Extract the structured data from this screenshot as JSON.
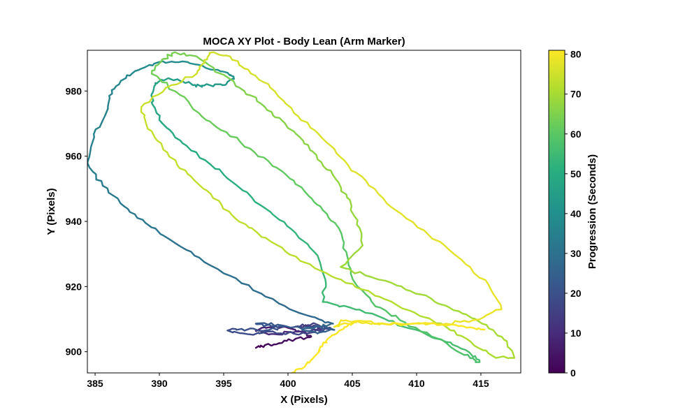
{
  "chart_data": {
    "type": "line",
    "title": "MOCA XY Plot - Body Lean (Arm Marker)",
    "xlabel": "X (Pixels)",
    "ylabel": "Y (Pixels)",
    "xlim": [
      384.4,
      418.1
    ],
    "ylim": [
      893.5,
      992.5
    ],
    "x_ticks": [
      385,
      390,
      395,
      400,
      405,
      410,
      415
    ],
    "y_ticks": [
      900,
      920,
      940,
      960,
      980
    ],
    "grid": false,
    "colorbar": {
      "label": "Progression (Seconds)",
      "range": [
        0,
        81
      ],
      "ticks": [
        0,
        10,
        20,
        30,
        40,
        50,
        60,
        70,
        80
      ],
      "colormap": "viridis"
    },
    "series": [
      {
        "x": [
          397.5,
          398.2,
          399.3,
          400.6,
          401.8,
          401.0,
          399.6,
          398.3,
          397.5,
          398.6,
          400.4,
          402.2,
          403.3,
          402.0,
          400.6,
          401.9,
          403.2
        ],
        "y": [
          901.2,
          902.0,
          902.6,
          904.0,
          904.6,
          906.2,
          907.6,
          907.3,
          906.4,
          905.4,
          905.9,
          906.7,
          907.3,
          908.0,
          907.7,
          908.6,
          907.3
        ],
        "t": [
          0,
          1,
          2,
          3,
          4,
          5,
          6,
          7,
          8,
          9,
          10,
          11,
          12,
          13,
          14,
          15,
          16
        ]
      },
      {
        "x": [
          403.3,
          402.0,
          400.4,
          398.6,
          397.1,
          395.3,
          396.4,
          398.1,
          399.6,
          398.3,
          397.5,
          399.2,
          400.9,
          402.6,
          403.6,
          402.3,
          401.1,
          402.7,
          403.5
        ],
        "y": [
          907.3,
          906.0,
          905.6,
          906.2,
          905.3,
          906.5,
          907.0,
          906.4,
          907.6,
          908.1,
          908.6,
          908.3,
          907.4,
          907.5,
          906.7,
          905.6,
          906.8,
          907.9,
          908.6
        ],
        "t": [
          16,
          16.6,
          17.2,
          17.8,
          18.4,
          19,
          19.6,
          20.2,
          20.8,
          21.4,
          22,
          22.6,
          23.2,
          23.8,
          24.4,
          25,
          25.6,
          26.2,
          26.8
        ]
      },
      {
        "x": [
          403.5,
          401.8,
          399.3,
          396.4,
          393.5,
          391.2,
          388.9,
          387.2,
          385.6,
          384.4,
          384.9,
          386.0,
          386.3,
          387.4,
          388.5,
          389.9,
          391.8,
          393.6,
          395.3,
          395.8,
          394.9,
          393.5,
          392.6,
          391.4,
          390.1,
          389.6,
          389.4,
          390.2,
          391.8,
          393.9,
          396.0,
          398.2,
          400.3,
          402.1,
          402.9,
          402.7
        ],
        "y": [
          908.6,
          910.8,
          914.8,
          921.0,
          927.5,
          933.4,
          939.6,
          944.8,
          950.9,
          958.0,
          966.8,
          974.6,
          980.3,
          984.0,
          986.7,
          988.8,
          989.1,
          987.1,
          985.6,
          983.7,
          981.8,
          981.7,
          981.8,
          983.6,
          983.5,
          981.5,
          976.5,
          970.2,
          964.0,
          957.7,
          951.1,
          944.1,
          937.5,
          930.4,
          922.2,
          915.3
        ],
        "t": [
          26.8,
          27.6,
          28.4,
          29.2,
          30,
          30.8,
          31.6,
          32.4,
          33.2,
          34,
          34.8,
          35.6,
          36.4,
          37.2,
          38,
          38.8,
          39.6,
          40.4,
          41.2,
          42,
          42.8,
          43.6,
          44.4,
          45.2,
          46,
          46.8,
          47.6,
          48.4,
          49.2,
          50,
          50.8,
          51.6,
          52.4,
          53.2,
          54,
          54.8
        ]
      },
      {
        "x": [
          402.7,
          404.8,
          407.4,
          409.9,
          412.3,
          414.1,
          414.9,
          413.7,
          411.6,
          409.1,
          406.8,
          405.2,
          404.6,
          404.0,
          402.7,
          401.3,
          399.5,
          397.4,
          395.2,
          393.3,
          391.6,
          389.4,
          390.2,
          391.2,
          393.1,
          394.7,
          396.6,
          398.2,
          399.6,
          400.9,
          402.2,
          403.5,
          404.6,
          405.4,
          405.8,
          404.1
        ],
        "y": [
          915.3,
          913.6,
          910.3,
          906.8,
          903.0,
          899.8,
          896.8,
          899.0,
          904.1,
          909.0,
          913.9,
          921.2,
          929.5,
          937.6,
          943.5,
          949.2,
          955.5,
          961.2,
          967.4,
          972.2,
          978.8,
          985.3,
          989.6,
          991.9,
          990.0,
          985.4,
          980.0,
          975.1,
          970.7,
          965.9,
          960.4,
          954.2,
          947.3,
          940.4,
          932.6,
          926.0
        ],
        "t": [
          54.8,
          55.2,
          55.6,
          56,
          56.4,
          56.8,
          57.2,
          57.6,
          58,
          58.4,
          58.8,
          59.2,
          59.6,
          60,
          60.4,
          60.8,
          61.2,
          61.6,
          62,
          62.4,
          62.8,
          63.2,
          63.6,
          64,
          64.4,
          64.8,
          65.2,
          65.6,
          66,
          66.4,
          66.8,
          67.2,
          67.6,
          68,
          68.4,
          68.8
        ]
      },
      {
        "x": [
          404.1,
          406.4,
          408.8,
          411.1,
          413.3,
          415.1,
          416.8,
          417.6,
          416.0,
          414.2,
          412.3,
          409.8,
          407.1,
          404.5,
          402.1,
          399.8,
          397.6,
          395.6,
          394.0,
          392.2,
          390.6,
          389.1,
          388.6,
          390.5,
          392.9,
          393.4,
          393.9,
          395.5,
          397.1,
          399.0,
          400.8,
          402.6,
          404.4,
          406.3,
          408.5,
          410.9,
          413.5,
          415.6,
          416.6
        ],
        "y": [
          926.0,
          923.0,
          920.1,
          916.4,
          912.4,
          908.6,
          903.7,
          898.1,
          898.5,
          903.1,
          907.6,
          912.1,
          916.9,
          921.1,
          925.6,
          930.8,
          936.6,
          942.1,
          948.4,
          954.5,
          961.2,
          968.4,
          975.1,
          981.0,
          985.3,
          988.4,
          991.7,
          990.6,
          985.4,
          979.8,
          972.2,
          965.8,
          958.6,
          951.0,
          943.1,
          936.0,
          928.2,
          920.5,
          913.0
        ],
        "t": [
          68.8,
          69.05,
          69.3,
          69.55,
          69.8,
          70.05,
          70.3,
          70.55,
          70.8,
          71.05,
          71.3,
          71.55,
          71.8,
          72.05,
          72.3,
          72.55,
          72.8,
          73.05,
          73.3,
          73.55,
          73.8,
          74.05,
          74.3,
          74.55,
          74.8,
          75.05,
          75.3,
          75.55,
          75.8,
          76.05,
          76.3,
          76.55,
          76.8,
          77.05,
          77.3,
          77.55,
          77.8,
          78.05,
          78.3
        ]
      },
      {
        "x": [
          416.6,
          414.4,
          412.3,
          410.1,
          408.0,
          406.1,
          404.3,
          403.6,
          405.2,
          407.5,
          409.8,
          412.1,
          413.9,
          415.3
        ],
        "y": [
          913.0,
          909.7,
          908.6,
          908.8,
          908.3,
          908.9,
          909.5,
          907.6,
          909.4,
          908.5,
          908.7,
          908.3,
          907.4,
          906.8
        ],
        "t": [
          78.3,
          78.5,
          78.7,
          78.9,
          79.1,
          79.3,
          79.5,
          79.7,
          79.9,
          80.1,
          80.3,
          80.5,
          80.7,
          80.9
        ]
      },
      {
        "x": [
          405.3,
          404.4,
          403.4,
          402.7,
          402.2,
          401.4,
          400.3
        ],
        "y": [
          909.0,
          907.6,
          905.0,
          902.2,
          899.1,
          896.0,
          893.5
        ],
        "t": [
          80,
          80.3,
          80.5,
          80.7,
          80.8,
          80.9,
          81
        ]
      }
    ]
  }
}
